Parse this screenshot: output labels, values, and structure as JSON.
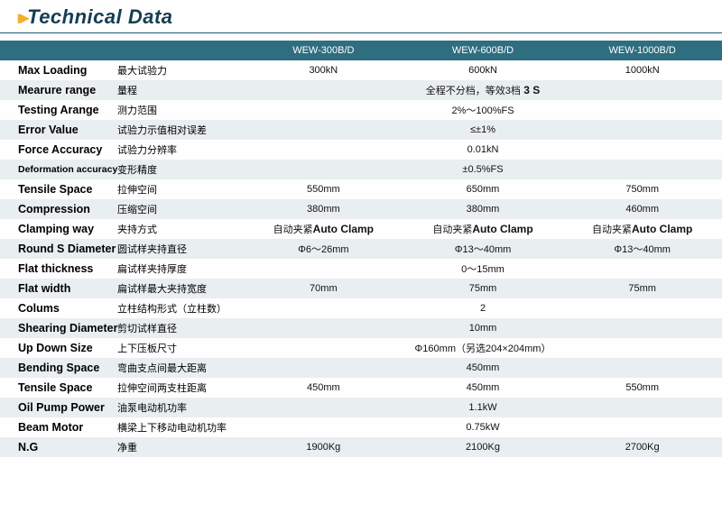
{
  "title": "Technical Data",
  "colors": {
    "header_bg": "#2e6e80",
    "stripe_bg": "#e9eef0",
    "title_color": "#153e52",
    "chevron_color": "#f0b030",
    "underline": "#225a6b"
  },
  "columns": [
    "WEW-300B/D",
    "WEW-600B/D",
    "WEW-1000B/D"
  ],
  "rows": [
    {
      "en": "Max Loading",
      "cn": "最大试验力",
      "vals": [
        "300kN",
        "600kN",
        "1000kN"
      ],
      "striped": false
    },
    {
      "en": "Mearure range",
      "cn": "量程",
      "vals": [
        "全程不分档，等效3档",
        "",
        ""
      ],
      "striped": true,
      "span": 3,
      "extra_bold": " 3 S"
    },
    {
      "en": "Testing Arange",
      "cn": "测力范围",
      "vals": [
        "2%～100%FS",
        "",
        ""
      ],
      "striped": false,
      "span": 3
    },
    {
      "en": "Error Value",
      "cn": "试验力示值相对误差",
      "vals": [
        "≤±1%",
        "",
        ""
      ],
      "striped": true,
      "span": 3
    },
    {
      "en": "Force Accuracy",
      "cn": "试验力分辨率",
      "vals": [
        "0.01kN",
        "",
        ""
      ],
      "striped": false,
      "span": 3
    },
    {
      "en": "Deformation accuracy",
      "cn": "变形精度",
      "vals": [
        "±0.5%FS",
        "",
        ""
      ],
      "striped": true,
      "span": 3,
      "small": true
    },
    {
      "en": "Tensile Space",
      "cn": "拉伸空间",
      "vals": [
        "550mm",
        "650mm",
        "750mm"
      ],
      "striped": false
    },
    {
      "en": "Compression",
      "cn": "压缩空间",
      "vals": [
        "380mm",
        "380mm",
        "460mm"
      ],
      "striped": true
    },
    {
      "en": "Clamping way",
      "cn": "夹持方式",
      "vals": [
        "自动夹紧",
        "自动夹紧",
        "自动夹紧"
      ],
      "striped": false,
      "clamp": true
    },
    {
      "en": "Round S Diameter",
      "cn": "圆试样夹持直径",
      "vals": [
        "Φ6～26mm",
        "Φ13～40mm",
        "Φ13～40mm"
      ],
      "striped": true
    },
    {
      "en": "Flat thickness",
      "cn": "扁试样夹持厚度",
      "vals": [
        "0～15mm",
        "",
        ""
      ],
      "striped": false,
      "span": 3
    },
    {
      "en": "Flat width",
      "cn": "扁试样最大夹持宽度",
      "vals": [
        "70mm",
        "75mm",
        "75mm"
      ],
      "striped": true
    },
    {
      "en": "Colums",
      "cn": "立柱结构形式（立柱数）",
      "vals": [
        "2",
        "",
        ""
      ],
      "striped": false,
      "span": 3
    },
    {
      "en": "Shearing Diameter",
      "cn": "剪切试样直径",
      "vals": [
        "10mm",
        "",
        ""
      ],
      "striped": true,
      "span": 3
    },
    {
      "en": "Up Down Size",
      "cn": "上下压板尺寸",
      "vals": [
        "Φ160mm（另选204×204mm）",
        "",
        ""
      ],
      "striped": false,
      "span": 3
    },
    {
      "en": "Bending Space",
      "cn": "弯曲支点间最大距离",
      "vals": [
        "450mm",
        "",
        ""
      ],
      "striped": true,
      "span": 3
    },
    {
      "en": "Tensile Space",
      "cn": "拉伸空间两支柱距离",
      "vals": [
        "450mm",
        "450mm",
        "550mm"
      ],
      "striped": false
    },
    {
      "en": "Oil Pump Power",
      "cn": "油泵电动机功率",
      "vals": [
        "1.1kW",
        "",
        ""
      ],
      "striped": true,
      "span": 3
    },
    {
      "en": "Beam Motor",
      "cn": "横梁上下移动电动机功率",
      "vals": [
        "0.75kW",
        "",
        ""
      ],
      "striped": false,
      "span": 3
    },
    {
      "en": "N.G",
      "cn": "净重",
      "vals": [
        "1900Kg",
        "2100Kg",
        "2700Kg"
      ],
      "striped": true
    }
  ],
  "clamp_bold": "Auto Clamp"
}
